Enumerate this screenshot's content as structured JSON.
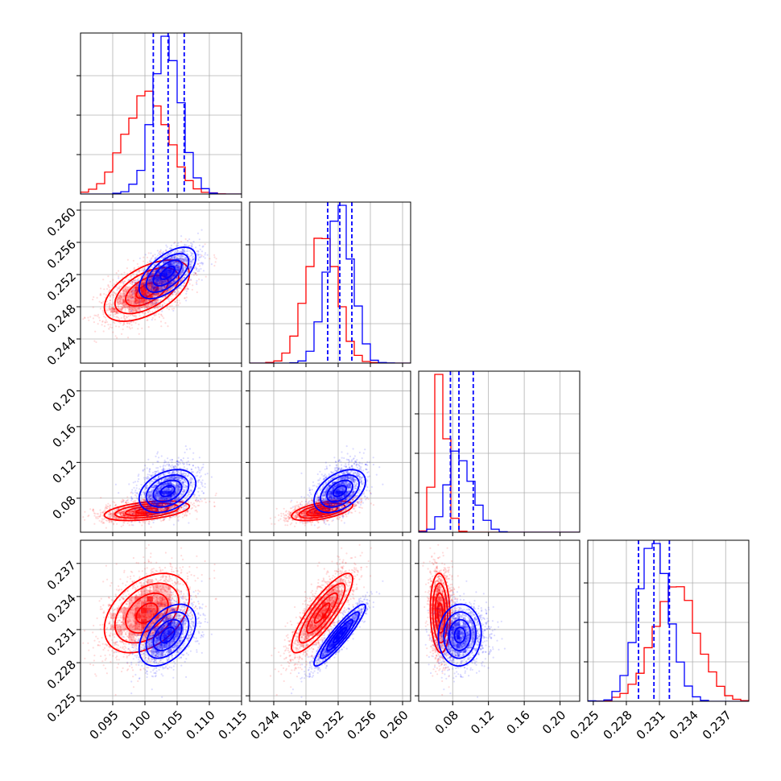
{
  "chart_data": {
    "type": "corner",
    "parameters": [
      {
        "range": [
          0.09,
          0.115
        ],
        "ticks": [
          "0.095",
          "0.100",
          "0.105",
          "0.110",
          "0.115"
        ],
        "tick_values": [
          0.095,
          0.1,
          0.105,
          0.11,
          0.115
        ]
      },
      {
        "range": [
          0.241,
          0.261
        ],
        "ticks": [
          "0.244",
          "0.248",
          "0.252",
          "0.256",
          "0.260"
        ],
        "tick_values": [
          0.244,
          0.248,
          0.252,
          0.256,
          0.26
        ]
      },
      {
        "range": [
          0.042,
          0.222
        ],
        "ticks": [
          "0.08",
          "0.12",
          "0.16",
          "0.20"
        ],
        "tick_values": [
          0.08,
          0.12,
          0.16,
          0.2
        ]
      },
      {
        "range": [
          0.2245,
          0.2391
        ],
        "ticks": [
          "0.225",
          "0.228",
          "0.231",
          "0.234",
          "0.237"
        ],
        "tick_values": [
          0.225,
          0.228,
          0.231,
          0.234,
          0.237
        ]
      }
    ],
    "series": [
      {
        "color": "#ff0000",
        "mean": [
          0.1003,
          0.25,
          0.066,
          0.2325
        ],
        "std": [
          0.0033,
          0.0019,
          0.0055,
          0.0018
        ],
        "corr": [
          [
            1.0,
            0.55,
            0.45,
            0.4
          ],
          [
            0.55,
            1.0,
            0.55,
            0.85
          ],
          [
            0.45,
            0.55,
            1.0,
            -0.1
          ],
          [
            0.4,
            0.85,
            -0.1,
            1.0
          ]
        ],
        "quantile_lines": false
      },
      {
        "color": "#0000ff",
        "mean": [
          0.1035,
          0.2522,
          0.088,
          0.2305
        ],
        "std": [
          0.0022,
          0.0016,
          0.012,
          0.0014
        ],
        "corr": [
          [
            1.0,
            0.6,
            0.35,
            0.45
          ],
          [
            0.6,
            1.0,
            0.45,
            0.92
          ],
          [
            0.35,
            0.45,
            1.0,
            0.05
          ],
          [
            0.45,
            0.92,
            0.05,
            1.0
          ]
        ],
        "quantile_lines": true,
        "quantiles": [
          [
            0.1013,
            0.1036,
            0.1061
          ],
          [
            0.2507,
            0.2522,
            0.2537
          ],
          [
            0.0775,
            0.087,
            0.103
          ],
          [
            0.2291,
            0.2305,
            0.2319
          ]
        ]
      }
    ],
    "grid": true,
    "legend": "none"
  }
}
